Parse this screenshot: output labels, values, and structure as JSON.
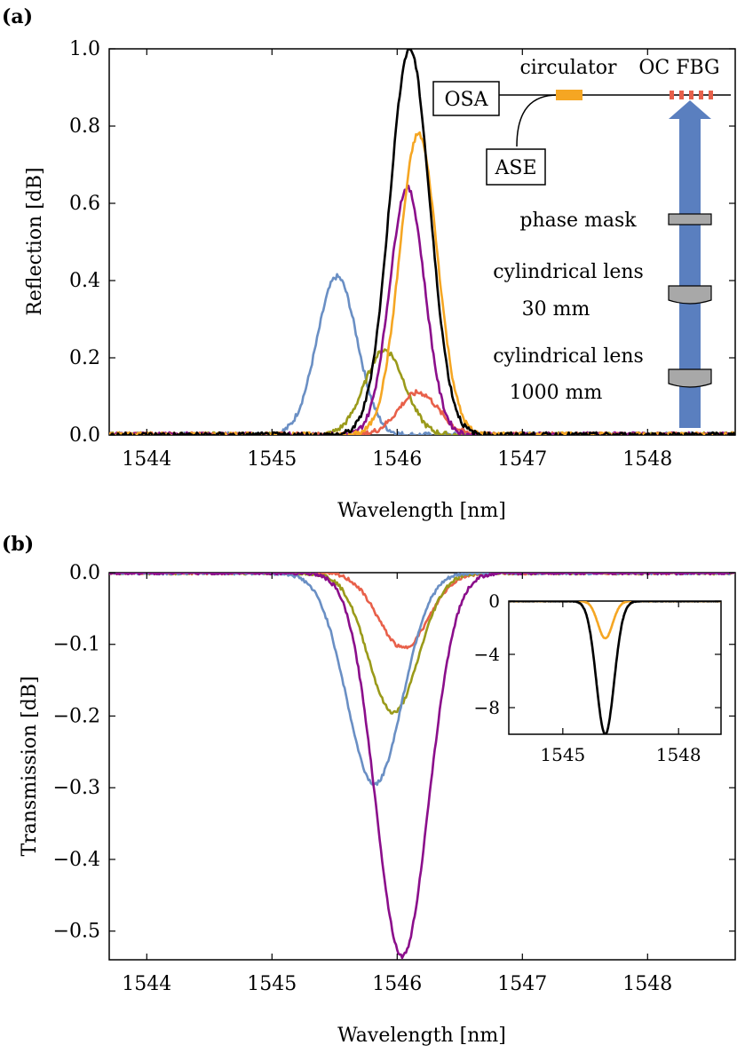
{
  "colors": {
    "blue": "#6a8fc4",
    "olive": "#9a9a1a",
    "purple": "#8b0e8b",
    "orange": "#f5a623",
    "red": "#e8604a",
    "black": "#000000",
    "arrow": "#5a7fbf",
    "optic": "#a8a8a8"
  },
  "chart_data": [
    {
      "panel_label": "(a)",
      "type": "line",
      "xlabel": "Wavelength [nm]",
      "ylabel": "Reflection [dB]",
      "xlim": [
        1543.7,
        1548.7
      ],
      "ylim": [
        0,
        1.0
      ],
      "xticks": [
        "1544",
        "1545",
        "1546",
        "1547",
        "1548"
      ],
      "yticks": [
        "0.0",
        "0.2",
        "0.4",
        "0.6",
        "0.8",
        "1.0"
      ],
      "series": [
        {
          "color": "blue",
          "shape": "gaussian",
          "center": 1545.52,
          "amplitude": 0.41,
          "width": 0.16
        },
        {
          "color": "olive",
          "shape": "gaussian",
          "center": 1545.9,
          "amplitude": 0.22,
          "width": 0.16
        },
        {
          "color": "red",
          "shape": "gaussian",
          "center": 1546.17,
          "amplitude": 0.11,
          "width": 0.16
        },
        {
          "color": "purple",
          "shape": "gaussian",
          "center": 1546.08,
          "amplitude": 0.64,
          "width": 0.14
        },
        {
          "color": "orange",
          "shape": "gaussian",
          "center": 1546.17,
          "amplitude": 0.78,
          "width": 0.15
        },
        {
          "color": "black",
          "shape": "gaussian",
          "center": 1546.1,
          "amplitude": 1.0,
          "width": 0.16
        }
      ],
      "setup_diagram": {
        "labels": {
          "osa": "OSA",
          "circulator": "circulator",
          "oc_fbg": "OC FBG",
          "ase": "ASE",
          "phase_mask": "phase mask",
          "cyl_lens_1": "cylindrical lens",
          "cyl_lens_1_f": "30 mm",
          "cyl_lens_2": "cylindrical lens",
          "cyl_lens_2_f": "1000 mm"
        }
      }
    },
    {
      "panel_label": "(b)",
      "type": "line",
      "xlabel": "Wavelength [nm]",
      "ylabel": "Transmission [dB]",
      "xlim": [
        1543.7,
        1548.7
      ],
      "ylim": [
        -0.54,
        0.0
      ],
      "xticks": [
        "1544",
        "1545",
        "1546",
        "1547",
        "1548"
      ],
      "yticks": [
        "0.0",
        "−0.1",
        "−0.2",
        "−0.3",
        "−0.4",
        "−0.5"
      ],
      "series": [
        {
          "color": "red",
          "shape": "gaussian",
          "center": 1546.05,
          "amplitude": -0.105,
          "width": 0.2
        },
        {
          "color": "olive",
          "shape": "gaussian",
          "center": 1545.97,
          "amplitude": -0.195,
          "width": 0.2
        },
        {
          "color": "blue",
          "shape": "gaussian",
          "center": 1545.82,
          "amplitude": -0.295,
          "width": 0.22
        },
        {
          "color": "purple",
          "shape": "gaussian",
          "center": 1546.04,
          "amplitude": -0.535,
          "width": 0.21
        }
      ],
      "inset": {
        "type": "line",
        "xlim": [
          1543.6,
          1549.1
        ],
        "ylim": [
          -10,
          0
        ],
        "xticks": [
          "1545",
          "1548"
        ],
        "yticks": [
          "0",
          "−4",
          "−8"
        ],
        "series": [
          {
            "color": "orange",
            "shape": "gaussian",
            "center": 1546.1,
            "amplitude": -2.8,
            "width": 0.19
          },
          {
            "color": "black",
            "shape": "gaussian",
            "center": 1546.1,
            "amplitude": -10.0,
            "width": 0.23
          }
        ]
      }
    }
  ]
}
